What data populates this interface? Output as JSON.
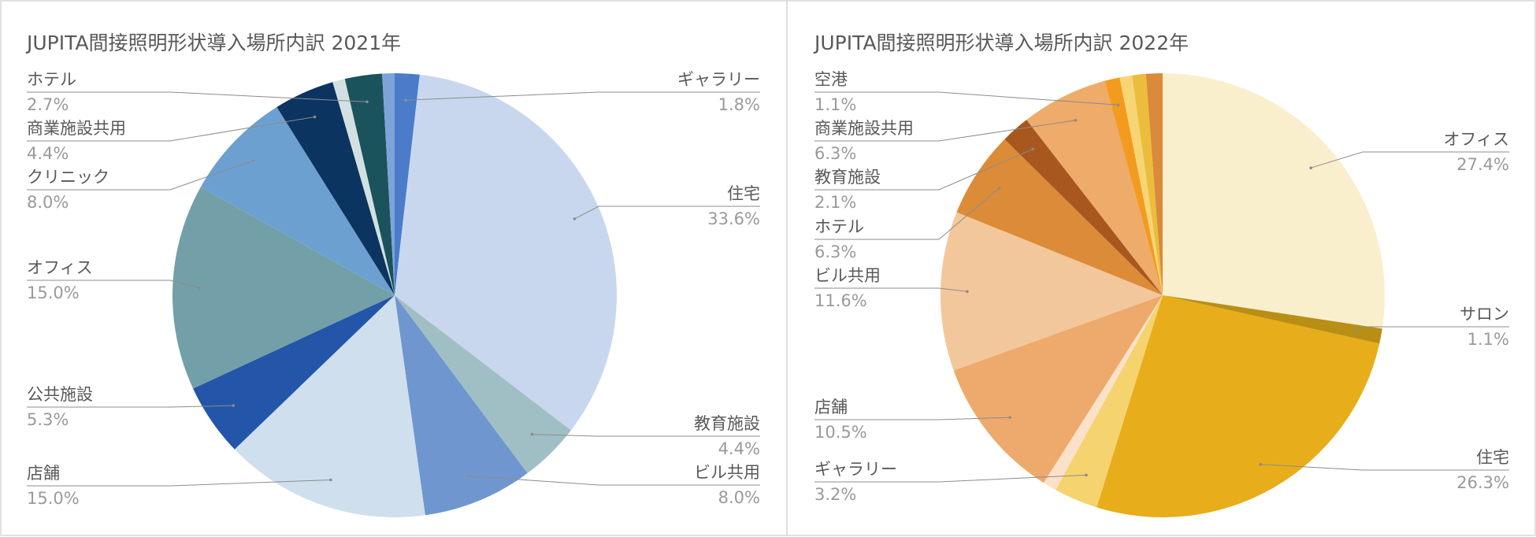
{
  "chart_data": [
    {
      "type": "pie",
      "title": "JUPITA間接照明形状導入場所内訳 2021年",
      "title_text": "JUPITA間接照明形状導入場所内訳  2021年",
      "start": "12 o'clock, clockwise",
      "slices": [
        {
          "label": "ギャラリー",
          "value": 1.8,
          "value_label": "1.8%",
          "color": "#4a7cc9",
          "side": "right"
        },
        {
          "label": "住宅",
          "value": 33.6,
          "value_label": "33.6%",
          "color": "#c9d7ee",
          "side": "right"
        },
        {
          "label": "教育施設",
          "value": 4.4,
          "value_label": "4.4%",
          "color": "#9fbfc4",
          "side": "right"
        },
        {
          "label": "ビル共用",
          "value": 8.0,
          "value_label": "8.0%",
          "color": "#6f96cf",
          "side": "right"
        },
        {
          "label": "店舗",
          "value": 15.0,
          "value_label": "15.0%",
          "color": "#cfdfee",
          "side": "left"
        },
        {
          "label": "公共施設",
          "value": 5.3,
          "value_label": "5.3%",
          "color": "#2355a8",
          "side": "left"
        },
        {
          "label": "オフィス",
          "value": 15.0,
          "value_label": "15.0%",
          "color": "#73a0a8",
          "side": "left"
        },
        {
          "label": "クリニック",
          "value": 8.0,
          "value_label": "8.0%",
          "color": "#6ca0d1",
          "side": "left"
        },
        {
          "label": "商業施設共用",
          "value": 4.4,
          "value_label": "4.4%",
          "color": "#0c3460",
          "side": "left"
        },
        {
          "label": "",
          "value": 0.9,
          "value_label": "",
          "color": "#d3e0e2",
          "side": "none"
        },
        {
          "label": "ホテル",
          "value": 2.7,
          "value_label": "2.7%",
          "color": "#1b535d",
          "side": "left"
        },
        {
          "label": "",
          "value": 0.9,
          "value_label": "",
          "color": "#7ea3d9",
          "side": "none"
        }
      ]
    },
    {
      "type": "pie",
      "title": "JUPITA間接照明形状導入場所内訳 2022年",
      "title_text": "JUPITA間接照明形状導入場所内訳  2022年",
      "start": "12 o'clock, clockwise",
      "slices": [
        {
          "label": "オフィス",
          "value": 27.4,
          "value_label": "27.4%",
          "color": "#faefcd",
          "side": "right"
        },
        {
          "label": "サロン",
          "value": 1.1,
          "value_label": "1.1%",
          "color": "#b88f14",
          "side": "right"
        },
        {
          "label": "住宅",
          "value": 26.3,
          "value_label": "26.3%",
          "color": "#e8ad1a",
          "side": "right"
        },
        {
          "label": "ギャラリー",
          "value": 3.2,
          "value_label": "3.2%",
          "color": "#f5d36e",
          "side": "left"
        },
        {
          "label": "",
          "value": 1.0,
          "value_label": "",
          "color": "#fbe1c9",
          "side": "none"
        },
        {
          "label": "店舗",
          "value": 10.5,
          "value_label": "10.5%",
          "color": "#edaa6c",
          "side": "left"
        },
        {
          "label": "ビル共用",
          "value": 11.6,
          "value_label": "11.6%",
          "color": "#f3c79c",
          "side": "left"
        },
        {
          "label": "ホテル",
          "value": 6.3,
          "value_label": "6.3%",
          "color": "#dc8b38",
          "side": "left"
        },
        {
          "label": "教育施設",
          "value": 2.1,
          "value_label": "2.1%",
          "color": "#a8571e",
          "side": "left"
        },
        {
          "label": "商業施設共用",
          "value": 6.3,
          "value_label": "6.3%",
          "color": "#eeab6a",
          "side": "left"
        },
        {
          "label": "空港",
          "value": 1.1,
          "value_label": "1.1%",
          "color": "#f29b1f",
          "side": "left"
        },
        {
          "label": "",
          "value": 0.9,
          "value_label": "",
          "color": "#f7d575",
          "side": "none"
        },
        {
          "label": "",
          "value": 1.0,
          "value_label": "",
          "color": "#ecbd3c",
          "side": "none"
        },
        {
          "label": "",
          "value": 1.2,
          "value_label": "",
          "color": "#da8a3a",
          "side": "none"
        }
      ]
    }
  ]
}
